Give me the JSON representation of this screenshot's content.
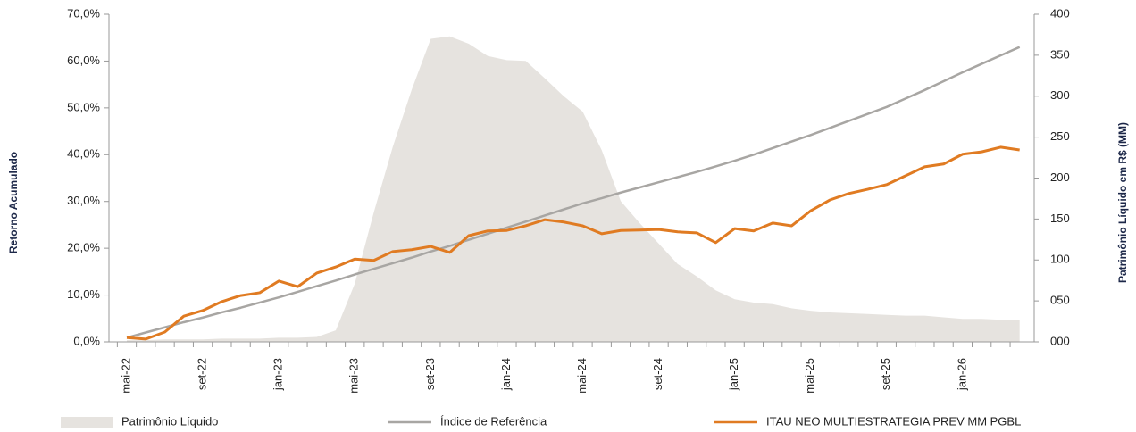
{
  "chart_data": {
    "type": "combo",
    "y_label": "Retorno Acumulado",
    "y2_label": "Patrimônio Líquido em R$ (MM)",
    "categories": [
      "mai-22",
      null,
      null,
      null,
      "set-22",
      null,
      null,
      null,
      "jan-23",
      null,
      null,
      null,
      "mai-23",
      null,
      null,
      null,
      "set-23",
      null,
      null,
      null,
      "jan-24",
      null,
      null,
      null,
      "mai-24",
      null,
      null,
      null,
      "set-24",
      null,
      null,
      null,
      "jan-25",
      null,
      null,
      null,
      "mai-25",
      null,
      null,
      null,
      "set-25",
      null,
      null,
      null,
      "jan-26",
      null,
      null,
      null
    ],
    "series": [
      {
        "name": "Patrimônio Líquido",
        "type": "area",
        "axis": "y2",
        "color": "#e6e3df",
        "values": [
          2,
          2,
          3,
          3,
          3,
          4,
          4,
          4,
          5,
          5,
          6,
          14,
          71,
          158,
          238,
          308,
          370,
          373,
          364,
          349,
          344,
          343,
          322,
          300,
          281,
          234,
          172,
          145,
          120,
          95,
          80,
          63,
          52,
          48,
          46,
          41,
          38,
          36,
          35,
          34,
          33,
          32,
          32,
          30,
          28,
          28,
          27,
          27
        ]
      },
      {
        "name": "Índice de Referência",
        "type": "line",
        "axis": "y",
        "color": "#a8a6a3",
        "values": [
          0.9,
          2.0,
          3.1,
          4.2,
          5.2,
          6.3,
          7.3,
          8.4,
          9.5,
          10.7,
          11.9,
          13.1,
          14.4,
          15.6,
          16.8,
          18.0,
          19.3,
          20.5,
          21.8,
          23.1,
          24.4,
          25.7,
          27.0,
          28.3,
          29.6,
          30.7,
          31.9,
          33.0,
          34.1,
          35.2,
          36.3,
          37.5,
          38.7,
          40.0,
          41.4,
          42.8,
          44.2,
          45.7,
          47.2,
          48.7,
          50.2,
          52.0,
          53.8,
          55.7,
          57.6,
          59.4,
          61.2,
          63.0
        ]
      },
      {
        "name": "ITAU NEO MULTIESTRATEGIA PREV MM PGBL",
        "type": "line",
        "axis": "y",
        "color": "#e07b22",
        "values": [
          0.9,
          0.6,
          2.1,
          5.5,
          6.7,
          8.6,
          9.9,
          10.5,
          13.0,
          11.8,
          14.7,
          16.0,
          17.7,
          17.4,
          19.3,
          19.7,
          20.4,
          19.1,
          22.7,
          23.7,
          23.8,
          24.8,
          26.1,
          25.6,
          24.8,
          23.1,
          23.8,
          23.9,
          24.0,
          23.5,
          23.3,
          21.2,
          24.2,
          23.7,
          25.4,
          24.8,
          28.0,
          30.3,
          31.7,
          32.6,
          33.6,
          35.5,
          37.4,
          38.0,
          40.1,
          40.6,
          41.6,
          41.0
        ]
      }
    ],
    "ylim": [
      0,
      70
    ],
    "yticks": [
      {
        "value": 0,
        "label": "0,0%"
      },
      {
        "value": 10,
        "label": "10,0%"
      },
      {
        "value": 20,
        "label": "20,0%"
      },
      {
        "value": 30,
        "label": "30,0%"
      },
      {
        "value": 40,
        "label": "40,0%"
      },
      {
        "value": 50,
        "label": "50,0%"
      },
      {
        "value": 60,
        "label": "60,0%"
      },
      {
        "value": 70,
        "label": "70,0%"
      }
    ],
    "y2lim": [
      0,
      400
    ],
    "y2ticks": [
      {
        "value": 0,
        "label": "000"
      },
      {
        "value": 50,
        "label": "050"
      },
      100,
      150,
      200,
      250,
      300,
      350,
      400
    ]
  }
}
